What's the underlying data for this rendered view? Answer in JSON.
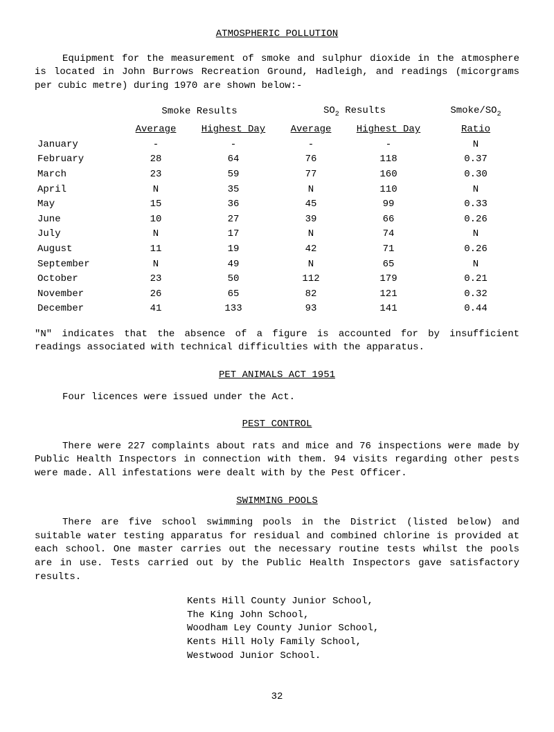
{
  "title": "ATMOSPHERIC POLLUTION",
  "intro": "Equipment for the measurement of smoke and sulphur dioxide in the atmosphere is located in John Burrows Recreation Ground, Hadleigh, and readings (micorgrams per cubic metre) during 1970 are shown below:-",
  "table": {
    "group_headers": {
      "smoke": "Smoke Results",
      "so2": "SO",
      "so2_sub": "2",
      "so2_after": " Results",
      "ratio": "Smoke/SO",
      "ratio_sub": "2"
    },
    "col_headers": {
      "avg1": "Average",
      "hd1": "Highest Day",
      "avg2": "Average",
      "hd2": "Highest Day",
      "ratio": "Ratio"
    },
    "rows": [
      {
        "month": "January",
        "a1": "-",
        "h1": "-",
        "a2": "-",
        "h2": "-",
        "r": "N"
      },
      {
        "month": "February",
        "a1": "28",
        "h1": "64",
        "a2": "76",
        "h2": "118",
        "r": "0.37"
      },
      {
        "month": "March",
        "a1": "23",
        "h1": "59",
        "a2": "77",
        "h2": "160",
        "r": "0.30"
      },
      {
        "month": "April",
        "a1": "N",
        "h1": "35",
        "a2": "N",
        "h2": "110",
        "r": "N"
      },
      {
        "month": "May",
        "a1": "15",
        "h1": "36",
        "a2": "45",
        "h2": "99",
        "r": "0.33"
      },
      {
        "month": "June",
        "a1": "10",
        "h1": "27",
        "a2": "39",
        "h2": "66",
        "r": "0.26"
      },
      {
        "month": "July",
        "a1": "N",
        "h1": "17",
        "a2": "N",
        "h2": "74",
        "r": "N"
      },
      {
        "month": "August",
        "a1": "11",
        "h1": "19",
        "a2": "42",
        "h2": "71",
        "r": "0.26"
      },
      {
        "month": "September",
        "a1": "N",
        "h1": "49",
        "a2": "N",
        "h2": "65",
        "r": "N"
      },
      {
        "month": "October",
        "a1": "23",
        "h1": "50",
        "a2": "112",
        "h2": "179",
        "r": "0.21"
      },
      {
        "month": "November",
        "a1": "26",
        "h1": "65",
        "a2": "82",
        "h2": "121",
        "r": "0.32"
      },
      {
        "month": "December",
        "a1": "41",
        "h1": "133",
        "a2": "93",
        "h2": "141",
        "r": "0.44"
      }
    ]
  },
  "note_n": "\"N\" indicates that the absence of a figure is accounted for by insufficient readings associated with technical difficulties with the apparatus.",
  "pet_heading": "PET ANIMALS ACT 1951",
  "pet_text": "Four licences were issued under the Act.",
  "pest_heading": "PEST CONTROL",
  "pest_text": "There were 227 complaints about rats and mice and 76 inspections were made by Public Health Inspectors in connection with them.    94 visits regarding other pests were made. All infestations were dealt with by the Pest Officer.",
  "swim_heading": "SWIMMING POOLS",
  "swim_text": "There are five school swimming pools in the District (listed below) and suitable water testing apparatus for residual and combined chlorine is provided at each school.  One master carries out the necessary routine tests whilst the pools are in use.  Tests carried out by the Public Health Inspectors gave satisfactory results.",
  "schools": [
    "Kents Hill County Junior School,",
    "The King John School,",
    "Woodham Ley County Junior School,",
    "Kents Hill Holy Family School,",
    "Westwood Junior School."
  ],
  "page_number": "32"
}
